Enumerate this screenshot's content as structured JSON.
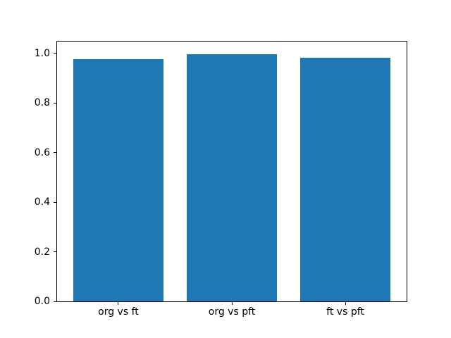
{
  "figure": {
    "background": "#ffffff"
  },
  "chart_data": {
    "type": "bar",
    "title": "",
    "xlabel": "",
    "ylabel": "",
    "categories": [
      "org vs ft",
      "org vs pft",
      "ft vs pft"
    ],
    "values": [
      0.978,
      0.998,
      0.984
    ],
    "bar_color": "#1f77b4",
    "yticks": [
      0.0,
      0.2,
      0.4,
      0.6,
      0.8,
      1.0
    ],
    "ytick_labels": [
      "0.0",
      "0.2",
      "0.4",
      "0.6",
      "0.8",
      "1.0"
    ],
    "ylim": [
      0,
      1.048
    ],
    "xlim": [
      -0.54,
      2.54
    ],
    "bar_width_units": 0.8,
    "grid": false,
    "legend": "none",
    "spine_color": "#000000",
    "text_color": "#000000"
  }
}
